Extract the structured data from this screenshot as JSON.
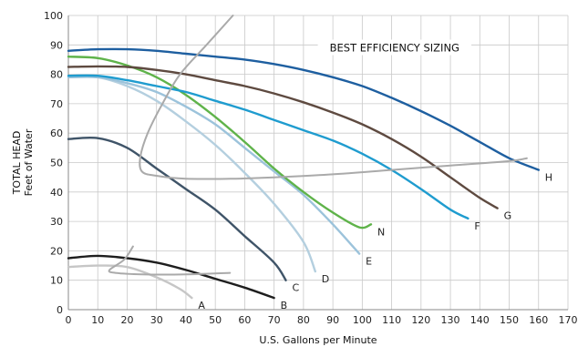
{
  "chart_data": {
    "type": "line",
    "xlabel": "U.S. Gallons per Minute",
    "ylabel": "TOTAL HEAD",
    "ylabel_sub": "Feet of Water",
    "xlim": [
      0,
      170
    ],
    "ylim": [
      0,
      100
    ],
    "x_ticks": [
      "0",
      "10",
      "20",
      "30",
      "40",
      "50",
      "60",
      "70",
      "80",
      "90",
      "100",
      "110",
      "120",
      "130",
      "140",
      "150",
      "160",
      "170"
    ],
    "y_ticks": [
      "0",
      "10",
      "20",
      "30",
      "40",
      "50",
      "60",
      "70",
      "80",
      "90",
      "100"
    ],
    "grid": true,
    "annotation": "BEST EFFICIENCY SIZING",
    "series": [
      {
        "name": "A",
        "color": "#c6c6c6",
        "points": [
          [
            0,
            14.5
          ],
          [
            10,
            15
          ],
          [
            20,
            14.5
          ],
          [
            30,
            11
          ],
          [
            38,
            7
          ],
          [
            42,
            4
          ]
        ]
      },
      {
        "name": "B",
        "color": "#1e1e1e",
        "points": [
          [
            0,
            17.5
          ],
          [
            10,
            18.3
          ],
          [
            20,
            17.5
          ],
          [
            30,
            16
          ],
          [
            40,
            13.5
          ],
          [
            50,
            10.5
          ],
          [
            60,
            7.5
          ],
          [
            70,
            4
          ]
        ]
      },
      {
        "name": "C",
        "color": "#3f5468",
        "points": [
          [
            0,
            58
          ],
          [
            10,
            58.3
          ],
          [
            20,
            55
          ],
          [
            30,
            48
          ],
          [
            40,
            41
          ],
          [
            50,
            34
          ],
          [
            60,
            25
          ],
          [
            70,
            16
          ],
          [
            74,
            10
          ]
        ]
      },
      {
        "name": "D",
        "color": "#b4cfdf",
        "points": [
          [
            0,
            79
          ],
          [
            10,
            79
          ],
          [
            20,
            76
          ],
          [
            30,
            71
          ],
          [
            40,
            64
          ],
          [
            50,
            56
          ],
          [
            60,
            46.5
          ],
          [
            70,
            36
          ],
          [
            80,
            23
          ],
          [
            84,
            13
          ]
        ]
      },
      {
        "name": "E",
        "color": "#9cc3db",
        "points": [
          [
            0,
            79
          ],
          [
            10,
            79
          ],
          [
            20,
            77
          ],
          [
            30,
            74
          ],
          [
            40,
            69
          ],
          [
            50,
            63
          ],
          [
            60,
            55
          ],
          [
            70,
            47
          ],
          [
            80,
            39
          ],
          [
            90,
            29
          ],
          [
            99,
            19
          ]
        ]
      },
      {
        "name": "N",
        "color": "#5fb34a",
        "points": [
          [
            0,
            86
          ],
          [
            10,
            85.5
          ],
          [
            20,
            83
          ],
          [
            30,
            79
          ],
          [
            40,
            73
          ],
          [
            50,
            65.5
          ],
          [
            60,
            57
          ],
          [
            70,
            48
          ],
          [
            80,
            40
          ],
          [
            90,
            33
          ],
          [
            99,
            28
          ],
          [
            103,
            29
          ]
        ]
      },
      {
        "name": "F",
        "color": "#1f9ccf",
        "points": [
          [
            0,
            79.5
          ],
          [
            10,
            79.5
          ],
          [
            20,
            78
          ],
          [
            30,
            76
          ],
          [
            40,
            74
          ],
          [
            50,
            71
          ],
          [
            60,
            68
          ],
          [
            70,
            64.5
          ],
          [
            80,
            61
          ],
          [
            90,
            57.5
          ],
          [
            100,
            53
          ],
          [
            110,
            47.5
          ],
          [
            120,
            41
          ],
          [
            130,
            34
          ],
          [
            136,
            31
          ]
        ]
      },
      {
        "name": "G",
        "color": "#5e4a40",
        "points": [
          [
            0,
            82.5
          ],
          [
            10,
            82.7
          ],
          [
            20,
            82.5
          ],
          [
            30,
            81.5
          ],
          [
            40,
            80
          ],
          [
            50,
            78
          ],
          [
            60,
            76
          ],
          [
            70,
            73.5
          ],
          [
            80,
            70.5
          ],
          [
            90,
            67
          ],
          [
            100,
            63
          ],
          [
            110,
            58
          ],
          [
            120,
            52
          ],
          [
            130,
            45
          ],
          [
            140,
            38
          ],
          [
            146,
            34.5
          ]
        ]
      },
      {
        "name": "H",
        "color": "#1e5fa0",
        "points": [
          [
            0,
            88
          ],
          [
            10,
            88.5
          ],
          [
            20,
            88.5
          ],
          [
            30,
            88
          ],
          [
            40,
            87
          ],
          [
            50,
            86
          ],
          [
            60,
            85
          ],
          [
            70,
            83.5
          ],
          [
            80,
            81.5
          ],
          [
            90,
            79
          ],
          [
            100,
            76
          ],
          [
            110,
            72
          ],
          [
            120,
            67.5
          ],
          [
            130,
            62.5
          ],
          [
            140,
            57
          ],
          [
            150,
            51.5
          ],
          [
            160,
            47.5
          ]
        ]
      },
      {
        "name": "",
        "color": "#aaaaaa",
        "points": [
          [
            56,
            100
          ],
          [
            47,
            90
          ],
          [
            38,
            80
          ],
          [
            32,
            70
          ],
          [
            27,
            60
          ],
          [
            24.5,
            52
          ],
          [
            25,
            47
          ],
          [
            30,
            45.5
          ],
          [
            40,
            44.5
          ],
          [
            55,
            44.5
          ],
          [
            70,
            45
          ],
          [
            90,
            46
          ],
          [
            110,
            47.5
          ],
          [
            130,
            49
          ],
          [
            150,
            50.5
          ],
          [
            156,
            51.5
          ]
        ]
      },
      {
        "name": "",
        "color": "#aaaaaa",
        "points": [
          [
            22,
            21.5
          ],
          [
            19,
            17
          ],
          [
            14,
            13.5
          ],
          [
            16,
            12.5
          ],
          [
            25,
            12
          ],
          [
            40,
            12
          ],
          [
            55,
            12.5
          ]
        ]
      }
    ]
  }
}
